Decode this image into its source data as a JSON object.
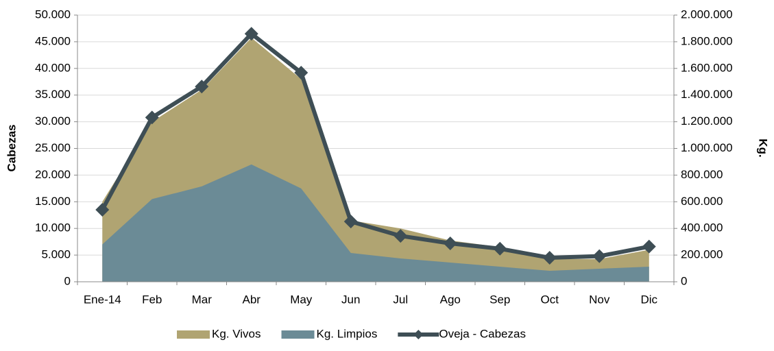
{
  "chart_data": {
    "type": "area",
    "categories": [
      "Ene-14",
      "Feb",
      "Mar",
      "Abr",
      "May",
      "Jun",
      "Jul",
      "Ago",
      "Sep",
      "Oct",
      "Nov",
      "Dic"
    ],
    "y_label": "Cabezas",
    "y2_label": "Kg.",
    "ylim": [
      0,
      50000
    ],
    "yticks": [
      {
        "value": 0,
        "label": "0"
      },
      {
        "value": 5000,
        "label": "5.000"
      },
      {
        "value": 10000,
        "label": "10.000"
      },
      {
        "value": 15000,
        "label": "15.000"
      },
      {
        "value": 20000,
        "label": "20.000"
      },
      {
        "value": 25000,
        "label": "25.000"
      },
      {
        "value": 30000,
        "label": "30.000"
      },
      {
        "value": 35000,
        "label": "35.000"
      },
      {
        "value": 40000,
        "label": "40.000"
      },
      {
        "value": 45000,
        "label": "45.000"
      },
      {
        "value": 50000,
        "label": "50.000"
      }
    ],
    "y2lim": [
      0,
      2000000
    ],
    "y2ticks": [
      {
        "value": 0,
        "label": "0"
      },
      {
        "value": 200000,
        "label": "200.000"
      },
      {
        "value": 400000,
        "label": "400.000"
      },
      {
        "value": 600000,
        "label": "600.000"
      },
      {
        "value": 800000,
        "label": "800.000"
      },
      {
        "value": 1000000,
        "label": "1.000.000"
      },
      {
        "value": 1200000,
        "label": "1.200.000"
      },
      {
        "value": 1400000,
        "label": "1.400.000"
      },
      {
        "value": 1600000,
        "label": "1.600.000"
      },
      {
        "value": 1800000,
        "label": "1.800.000"
      },
      {
        "value": 2000000,
        "label": "2.000.000"
      }
    ],
    "grid": true,
    "legend": "bottom",
    "series": [
      {
        "name": "Kg. Vivos",
        "type": "area",
        "axis": "y2",
        "color": "#b0a472",
        "values": [
          600000,
          1200000,
          1440000,
          1830000,
          1520000,
          460000,
          400000,
          310000,
          260000,
          170000,
          170000,
          240000
        ]
      },
      {
        "name": "Kg. Limpios",
        "type": "area",
        "axis": "y2",
        "color": "#6b8b96",
        "values": [
          280000,
          620000,
          715000,
          880000,
          700000,
          216000,
          175000,
          144000,
          113000,
          82000,
          98000,
          113000
        ]
      },
      {
        "name": "Oveja - Cabezas",
        "type": "line",
        "axis": "y",
        "color": "#3e4e55",
        "values": [
          13500,
          30800,
          36600,
          46500,
          39200,
          11300,
          8600,
          7200,
          6200,
          4500,
          4800,
          6600
        ]
      }
    ]
  }
}
